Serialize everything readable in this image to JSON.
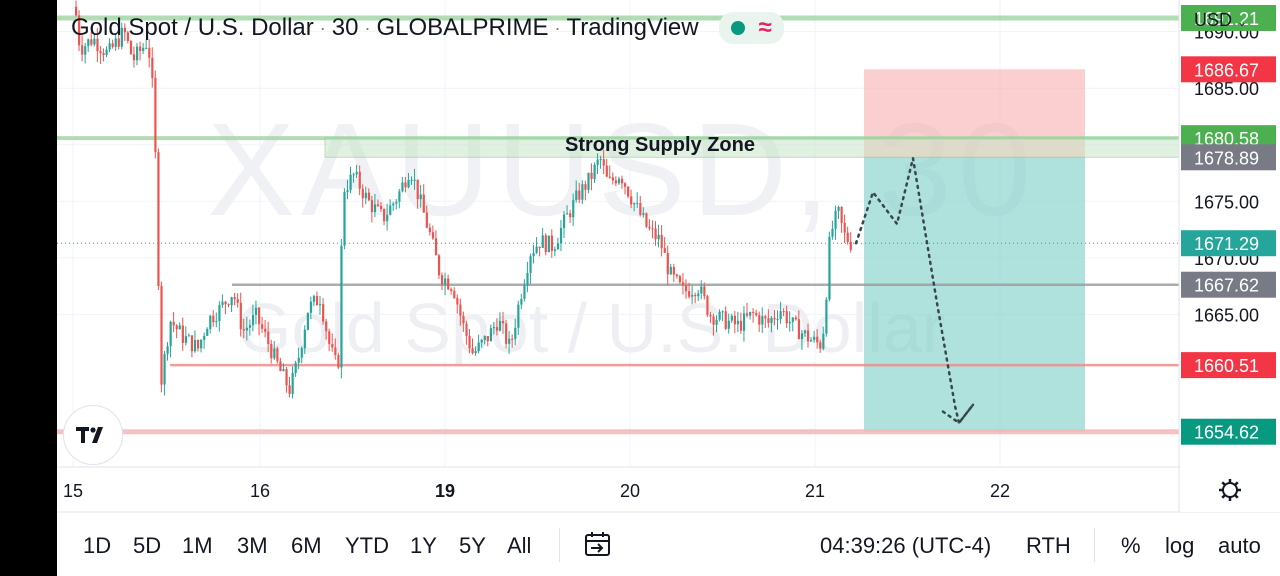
{
  "header": {
    "symbol": "Gold Spot / U.S. Dollar",
    "interval": "30",
    "exchange": "GLOBALPRIME",
    "source": "TradingView",
    "currency": "USD",
    "watermark_symbol": "XAUUSD, 30",
    "watermark_desc": "Gold Spot / U.S. Dollar"
  },
  "chart_data": {
    "type": "candlestick",
    "x_tick_labels": [
      "15",
      "16",
      "19",
      "20",
      "21",
      "22"
    ],
    "ylim": [
      1651.5,
      1692.8
    ],
    "y_tick_labels": [
      "1690.00",
      "1685.00",
      "1680.00",
      "1675.00",
      "1670.00",
      "1665.00"
    ],
    "y_ticks": [
      1690,
      1685,
      1680,
      1675,
      1670,
      1665
    ],
    "annotation": "Strong Supply Zone",
    "price_labels": [
      {
        "value": 1691.21,
        "text": "1691.21",
        "color": "#4caf50"
      },
      {
        "value": 1686.67,
        "text": "1686.67",
        "color": "#f23645"
      },
      {
        "value": 1680.58,
        "text": "1680.58",
        "color": "#4caf50"
      },
      {
        "value": 1678.89,
        "text": "1678.89",
        "color": "#787b86"
      },
      {
        "value": 1671.29,
        "text": "1671.29",
        "color": "#26a69a"
      },
      {
        "value": 1667.62,
        "text": "1667.62",
        "color": "#787b86"
      },
      {
        "value": 1660.51,
        "text": "1660.51",
        "color": "#f23645"
      },
      {
        "value": 1654.62,
        "text": "1654.62",
        "color": "#089981"
      }
    ],
    "horizontal_levels": [
      {
        "value": 1691.21,
        "color": "#a5d6a7"
      },
      {
        "value": 1680.58,
        "color": "#a5d6a7"
      },
      {
        "value": 1667.62,
        "color": "#9e9e9e"
      },
      {
        "value": 1660.51,
        "color": "#f28b8b"
      },
      {
        "value": 1654.62,
        "color": "#f7b6b6"
      }
    ],
    "supply_zone": {
      "low": 1678.89,
      "high": 1680.58
    },
    "position": {
      "entry": 1678.89,
      "stop": 1686.67,
      "target": 1654.62
    },
    "current_price": 1671.29,
    "projection": [
      1671.29,
      1675.8,
      1673.0,
      1678.8,
      1666.0,
      1656.9,
      1655.4,
      1657.0
    ],
    "colors": {
      "up": "#26a69a",
      "down": "#ef5350"
    }
  },
  "bottom": {
    "ranges": [
      "1D",
      "5D",
      "1M",
      "3M",
      "6M",
      "YTD",
      "1Y",
      "5Y",
      "All"
    ],
    "time": "04:39:26 (UTC-4)",
    "session": "RTH",
    "percent": "%",
    "log": "log",
    "auto": "auto"
  }
}
